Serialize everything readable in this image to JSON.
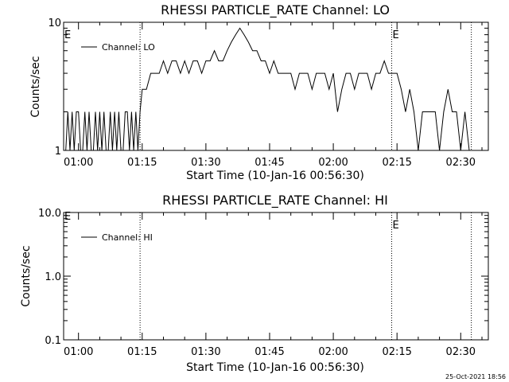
{
  "footer_timestamp": "25-Oct-2021 18:56",
  "chart_data": [
    {
      "type": "line",
      "title": "RHESSI PARTICLE_RATE Channel: LO",
      "xlabel": "Start Time (10-Jan-16 00:56:30)",
      "ylabel": "Counts/sec",
      "y_scale": "log",
      "ylim": [
        1,
        10
      ],
      "y_ticks": [
        {
          "v": 1,
          "label": "1"
        },
        {
          "v": 10,
          "label": "10"
        }
      ],
      "xlim": [
        "00:56:30",
        "02:36:30"
      ],
      "x_ticks": [
        {
          "t": "01:00",
          "label": "01:00"
        },
        {
          "t": "01:15",
          "label": "01:15"
        },
        {
          "t": "01:30",
          "label": "01:30"
        },
        {
          "t": "01:45",
          "label": "01:45"
        },
        {
          "t": "02:00",
          "label": "02:00"
        },
        {
          "t": "02:15",
          "label": "02:15"
        },
        {
          "t": "02:30",
          "label": "02:30"
        }
      ],
      "event_lines": [
        {
          "t": "01:14:30",
          "label": ""
        },
        {
          "t": "02:13:45",
          "label": "E"
        },
        {
          "t": "02:32:30",
          "label": ""
        }
      ],
      "corner_label": "E",
      "legend": "Channel: LO",
      "series": [
        {
          "name": "Channel: LO",
          "x": [
            "00:57:00",
            "00:57:30",
            "00:58:00",
            "00:58:30",
            "00:59:00",
            "00:59:30",
            "01:00:00",
            "01:00:30",
            "01:01:00",
            "01:01:30",
            "01:02:00",
            "01:02:30",
            "01:03:00",
            "01:03:30",
            "01:04:00",
            "01:04:30",
            "01:05:00",
            "01:05:30",
            "01:06:00",
            "01:06:30",
            "01:07:00",
            "01:07:30",
            "01:08:00",
            "01:08:30",
            "01:09:00",
            "01:09:30",
            "01:10:00",
            "01:10:30",
            "01:11:00",
            "01:11:30",
            "01:12:00",
            "01:12:30",
            "01:13:00",
            "01:13:30",
            "01:14:00",
            "01:14:30",
            "01:15:00",
            "01:16:00",
            "01:17:00",
            "01:18:00",
            "01:19:00",
            "01:20:00",
            "01:21:00",
            "01:22:00",
            "01:23:00",
            "01:24:00",
            "01:25:00",
            "01:26:00",
            "01:27:00",
            "01:28:00",
            "01:29:00",
            "01:30:00",
            "01:31:00",
            "01:32:00",
            "01:33:00",
            "01:34:00",
            "01:35:00",
            "01:36:00",
            "01:37:00",
            "01:38:00",
            "01:39:00",
            "01:40:00",
            "01:41:00",
            "01:42:00",
            "01:43:00",
            "01:44:00",
            "01:45:00",
            "01:46:00",
            "01:47:00",
            "01:48:00",
            "01:49:00",
            "01:50:00",
            "01:51:00",
            "01:52:00",
            "01:53:00",
            "01:54:00",
            "01:55:00",
            "01:56:00",
            "01:57:00",
            "01:58:00",
            "01:59:00",
            "02:00:00",
            "02:01:00",
            "02:02:00",
            "02:03:00",
            "02:04:00",
            "02:05:00",
            "02:06:00",
            "02:07:00",
            "02:08:00",
            "02:09:00",
            "02:10:00",
            "02:11:00",
            "02:12:00",
            "02:13:00",
            "02:14:00",
            "02:15:00",
            "02:16:00",
            "02:17:00",
            "02:18:00",
            "02:19:00",
            "02:20:00",
            "02:21:00",
            "02:22:00",
            "02:23:00",
            "02:24:00",
            "02:25:00",
            "02:26:00",
            "02:27:00",
            "02:28:00",
            "02:29:00",
            "02:30:00",
            "02:31:00",
            "02:32:00",
            "02:33:00"
          ],
          "y": [
            1,
            2,
            1,
            2,
            1,
            2,
            2,
            1,
            1,
            2,
            1,
            2,
            1,
            1,
            2,
            1,
            2,
            1,
            2,
            1,
            1,
            2,
            1,
            2,
            1,
            2,
            1,
            1,
            2,
            2,
            1,
            2,
            1,
            2,
            1,
            2,
            3,
            3,
            4,
            4,
            4,
            5,
            4,
            5,
            5,
            4,
            5,
            4,
            5,
            5,
            4,
            5,
            5,
            6,
            5,
            5,
            6,
            7,
            8,
            9,
            8,
            7,
            6,
            6,
            5,
            5,
            4,
            5,
            4,
            4,
            4,
            4,
            3,
            4,
            4,
            4,
            3,
            4,
            4,
            4,
            3,
            4,
            2,
            3,
            4,
            4,
            3,
            4,
            4,
            4,
            3,
            4,
            4,
            5,
            4,
            4,
            4,
            3,
            2,
            3,
            2,
            1,
            2,
            2,
            2,
            2,
            1,
            2,
            3,
            2,
            2,
            1,
            2,
            1,
            1
          ]
        }
      ]
    },
    {
      "type": "line",
      "title": "RHESSI PARTICLE_RATE Channel: HI",
      "xlabel": "Start Time (10-Jan-16 00:56:30)",
      "ylabel": "Counts/sec",
      "y_scale": "log",
      "ylim": [
        0.1,
        10
      ],
      "y_ticks": [
        {
          "v": 0.1,
          "label": "0.1"
        },
        {
          "v": 1,
          "label": "1.0"
        },
        {
          "v": 10,
          "label": "10.0"
        }
      ],
      "xlim": [
        "00:56:30",
        "02:36:30"
      ],
      "x_ticks": [
        {
          "t": "01:00",
          "label": "01:00"
        },
        {
          "t": "01:15",
          "label": "01:15"
        },
        {
          "t": "01:30",
          "label": "01:30"
        },
        {
          "t": "01:45",
          "label": "01:45"
        },
        {
          "t": "02:00",
          "label": "02:00"
        },
        {
          "t": "02:15",
          "label": "02:15"
        },
        {
          "t": "02:30",
          "label": "02:30"
        }
      ],
      "event_lines": [
        {
          "t": "01:14:30",
          "label": ""
        },
        {
          "t": "02:13:45",
          "label": "E"
        },
        {
          "t": "02:32:30",
          "label": ""
        }
      ],
      "corner_label": "E",
      "legend": "Channel: HI",
      "series": [
        {
          "name": "Channel: HI",
          "x": [],
          "y": []
        }
      ]
    }
  ]
}
